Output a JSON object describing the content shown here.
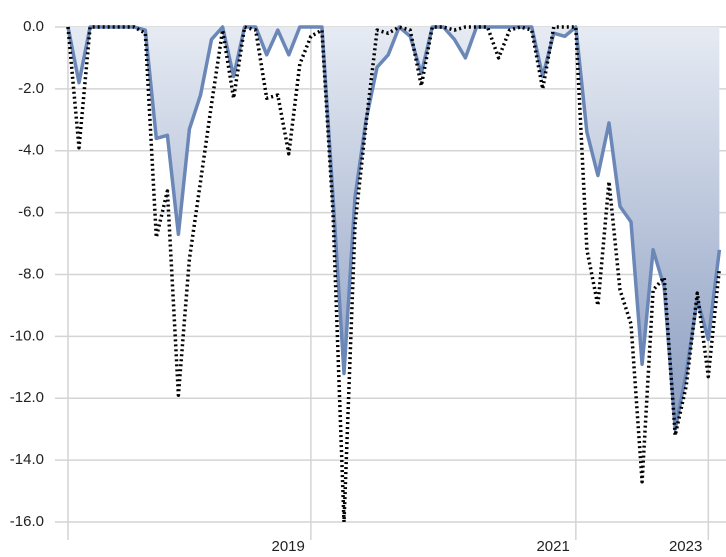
{
  "chart_data": {
    "type": "line",
    "categories": [
      null,
      null,
      null,
      null,
      null,
      null,
      null,
      null,
      null,
      null,
      null,
      null,
      null,
      null,
      null,
      null,
      null,
      null,
      null,
      null,
      null,
      null,
      "2019",
      null,
      null,
      null,
      null,
      null,
      null,
      null,
      null,
      null,
      null,
      null,
      null,
      null,
      null,
      null,
      null,
      null,
      null,
      null,
      null,
      null,
      null,
      null,
      "2021",
      null,
      null,
      null,
      null,
      null,
      null,
      null,
      null,
      null,
      null,
      null,
      "2023",
      null
    ],
    "series": [
      {
        "color": "#6b87b8",
        "area": true,
        "dash": "solid",
        "values": [
          0,
          -1.8,
          0,
          0,
          0,
          0,
          0,
          -0.1,
          -3.6,
          -3.5,
          -6.7,
          -3.3,
          -2.2,
          -0.4,
          0,
          -1.6,
          0,
          0,
          -0.9,
          -0.1,
          -0.9,
          0,
          0,
          0,
          -5.5,
          -11.2,
          -5.5,
          -3.0,
          -1.3,
          -0.9,
          0,
          -0.3,
          -1.5,
          0,
          0,
          -0.4,
          -1.0,
          0,
          0,
          0,
          0,
          0,
          0,
          -1.6,
          -0.2,
          -0.3,
          0,
          -3.4,
          -4.8,
          -3.1,
          -5.8,
          -6.3,
          -10.9,
          -7.2,
          -8.4,
          -13.0,
          -11.2,
          -8.8,
          -10.1,
          -7.2
        ]
      },
      {
        "color": "#000000",
        "area": false,
        "dash": "dotted",
        "values": [
          0,
          -3.9,
          0,
          0,
          0,
          0,
          0,
          -0.2,
          -6.8,
          -5.3,
          -11.9,
          -7.5,
          -5.0,
          -2.5,
          -0.1,
          -2.3,
          0,
          -0.1,
          -2.3,
          -2.2,
          -4.1,
          -1.2,
          -0.3,
          -0.1,
          -6.0,
          -16.0,
          -6.4,
          -3.1,
          -0.1,
          -0.2,
          0,
          -0.1,
          -1.9,
          0,
          0,
          -0.1,
          0,
          0,
          0,
          -1.0,
          -0.1,
          0,
          -0.1,
          -2.0,
          0,
          0,
          0,
          -7.2,
          -9.0,
          -5.0,
          -8.5,
          -9.6,
          -14.7,
          -8.5,
          -8.1,
          -13.2,
          -11.6,
          -8.6,
          -11.3,
          -7.8
        ]
      }
    ],
    "ylim": [
      -16,
      0
    ],
    "yticks": [
      {
        "value": 0,
        "label": "0.0"
      },
      {
        "value": -2,
        "label": "-2.0"
      },
      {
        "value": -4,
        "label": "-4.0"
      },
      {
        "value": -6,
        "label": "-6.0"
      },
      {
        "value": -8,
        "label": "-8.0"
      },
      {
        "value": -10,
        "label": "-10.0"
      },
      {
        "value": -12,
        "label": "-12.0"
      },
      {
        "value": -14,
        "label": "-14.0"
      },
      {
        "value": -16,
        "label": "-16.0"
      }
    ],
    "grid": true
  }
}
